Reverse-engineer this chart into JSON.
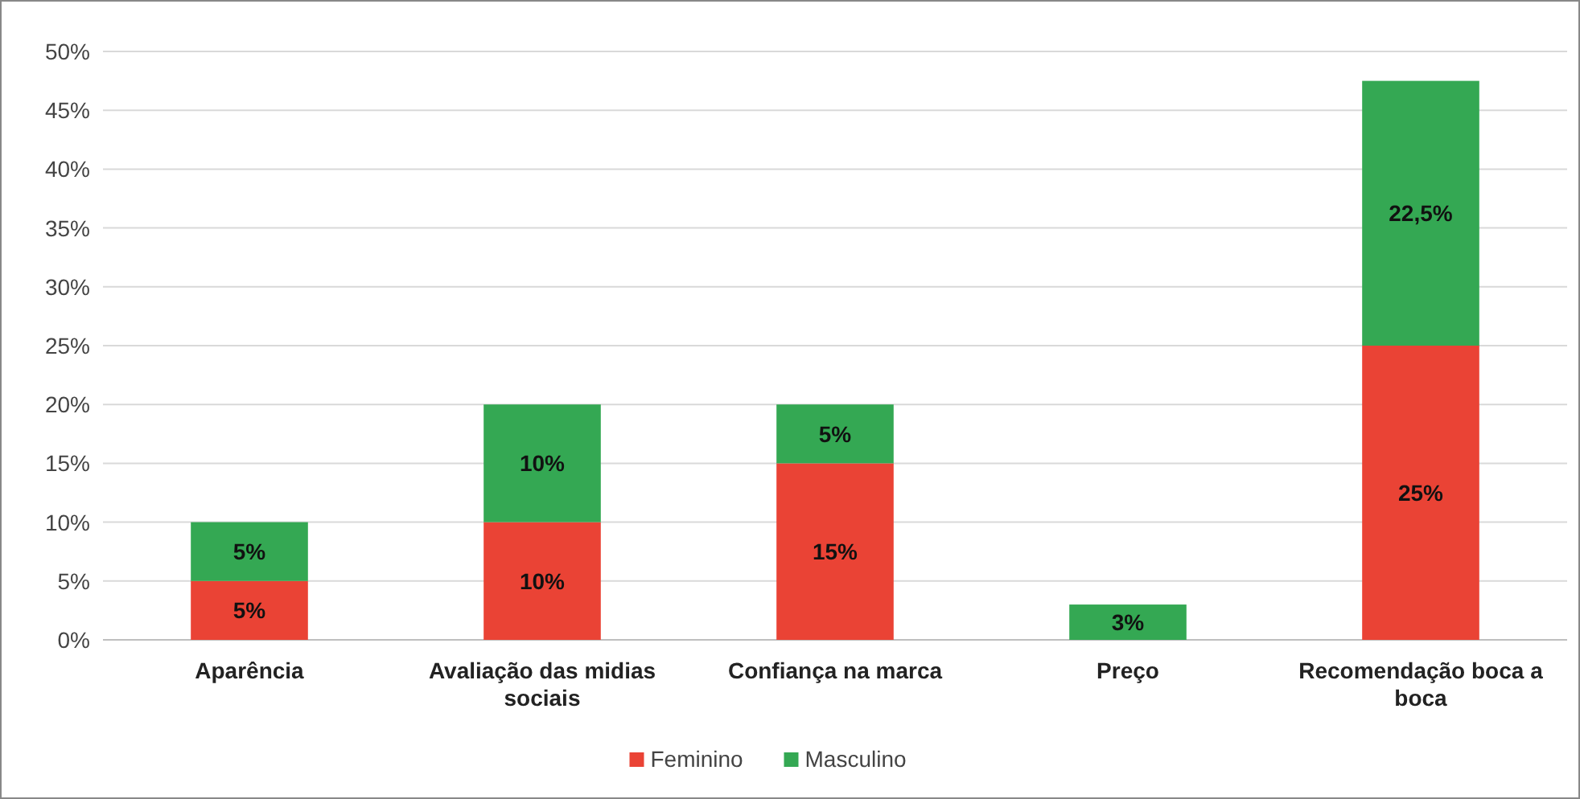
{
  "chart_data": {
    "type": "bar",
    "stacked": true,
    "categories": [
      "Aparência",
      "Avaliação das midias sociais",
      "Confiança na marca",
      "Preço",
      "Recomendação boca a boca"
    ],
    "series": [
      {
        "name": "Feminino",
        "color": "#ea4335",
        "values": [
          5,
          10,
          15,
          null,
          25
        ],
        "value_labels": [
          "5%",
          "10%",
          "15%",
          null,
          "25%"
        ]
      },
      {
        "name": "Masculino",
        "color": "#34a853",
        "values": [
          5,
          10,
          5,
          3,
          22.5
        ],
        "value_labels": [
          "5%",
          "10%",
          "5%",
          "3%",
          "22,5%"
        ]
      }
    ],
    "ylim": [
      0,
      50
    ],
    "yticks": [
      {
        "value": 0,
        "label": "0%"
      },
      {
        "value": 5,
        "label": "5%"
      },
      {
        "value": 10,
        "label": "10%"
      },
      {
        "value": 15,
        "label": "15%"
      },
      {
        "value": 20,
        "label": "20%"
      },
      {
        "value": 25,
        "label": "25%"
      },
      {
        "value": 30,
        "label": "30%"
      },
      {
        "value": 35,
        "label": "35%"
      },
      {
        "value": 40,
        "label": "40%"
      },
      {
        "value": 45,
        "label": "45%"
      },
      {
        "value": 50,
        "label": "50%"
      }
    ],
    "grid": "y",
    "legend": "bottom"
  }
}
